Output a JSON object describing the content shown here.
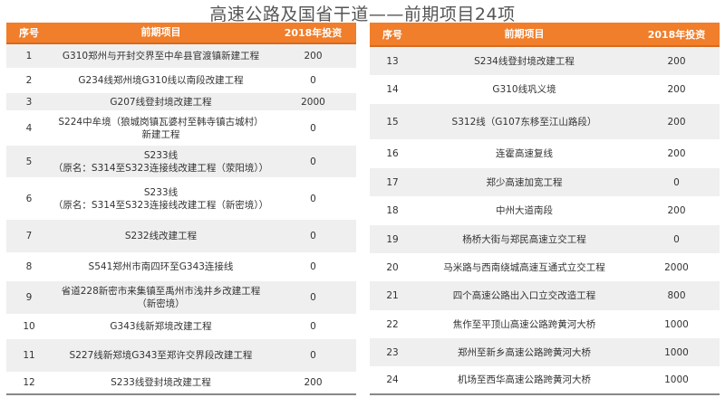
{
  "title": "高速公路及国省干道——前期项目24项",
  "columns": [
    "序号",
    "前期项目",
    "2018年投资"
  ],
  "colors": {
    "header": "#f07e2b",
    "stripe": "#efefef"
  },
  "left_rows": [
    {
      "no": "1",
      "name": "G310郑州与开封交界至中牟县官渡镇新建工程",
      "invest": "200"
    },
    {
      "no": "2",
      "name": "G234线郑州境G310线以南段改建工程",
      "invest": "0"
    },
    {
      "no": "3",
      "name": "G207线登封境改建工程",
      "invest": "2000"
    },
    {
      "no": "4",
      "name": "S224中牟境（狼城岗镇瓦婆村至韩寺镇古城村）\n新建工程",
      "invest": "0"
    },
    {
      "no": "5",
      "name": "S233线\n（原名：S314至S323连接线改建工程（荥阳境））",
      "invest": "0"
    },
    {
      "no": "6",
      "name": "S233线\n（原名：S314至S323连接线改建工程（新密境））",
      "invest": "0"
    },
    {
      "no": "7",
      "name": "S232线改建工程",
      "invest": "0"
    },
    {
      "no": "8",
      "name": "S541郑州市南四环至G343连接线",
      "invest": "0"
    },
    {
      "no": "9",
      "name": "省道228新密市来集镇至禹州市浅井乡改建工程\n（新密境）",
      "invest": "0"
    },
    {
      "no": "10",
      "name": "G343线新郑境改建工程",
      "invest": "0"
    },
    {
      "no": "11",
      "name": "S227线新郑境G343至郑许交界段改建工程",
      "invest": "0"
    },
    {
      "no": "12",
      "name": "S233线登封境改建工程",
      "invest": "200"
    }
  ],
  "right_rows": [
    {
      "no": "13",
      "name": "S234线登封境改建工程",
      "invest": "200"
    },
    {
      "no": "14",
      "name": "G310线巩义境",
      "invest": "200"
    },
    {
      "no": "15",
      "name": "S312线（G107东移至江山路段）",
      "invest": "200"
    },
    {
      "no": "16",
      "name": "连霍高速复线",
      "invest": "200"
    },
    {
      "no": "17",
      "name": "郑少高速加宽工程",
      "invest": "0"
    },
    {
      "no": "18",
      "name": "中州大道南段",
      "invest": "200"
    },
    {
      "no": "19",
      "name": "杨桥大街与郑民高速立交工程",
      "invest": "0"
    },
    {
      "no": "20",
      "name": "马米路与西南绕城高速互通式立交工程",
      "invest": "2000"
    },
    {
      "no": "21",
      "name": "四个高速公路出入口立交改造工程",
      "invest": "800"
    },
    {
      "no": "22",
      "name": "焦作至平顶山高速公路跨黄河大桥",
      "invest": "1000"
    },
    {
      "no": "23",
      "name": "郑州至新乡高速公路跨黄河大桥",
      "invest": "1000"
    },
    {
      "no": "24",
      "name": "机场至西华高速公路跨黄河大桥",
      "invest": "1000"
    }
  ]
}
